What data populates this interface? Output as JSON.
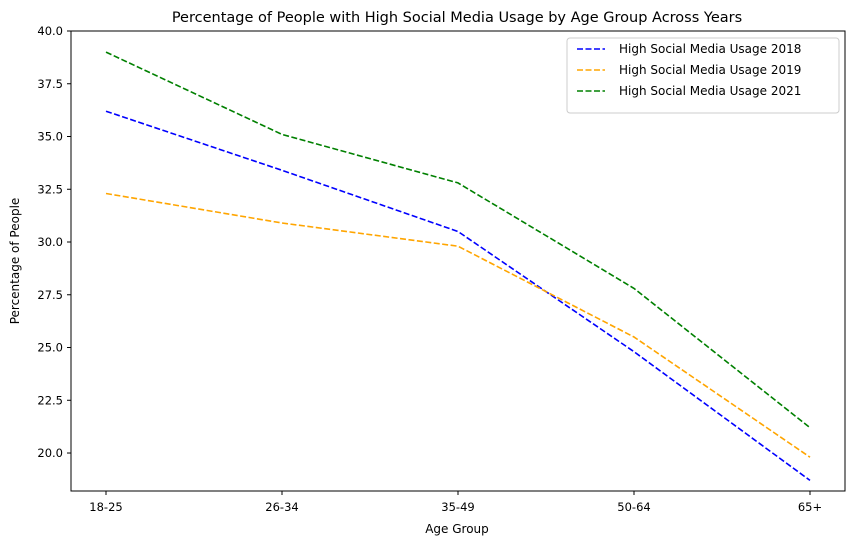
{
  "chart_data": {
    "type": "line",
    "title": "Percentage of People with High Social Media Usage by Age Group Across Years",
    "xlabel": "Age Group",
    "ylabel": "Percentage of People",
    "categories": [
      "18-25",
      "26-34",
      "35-49",
      "50-64",
      "65+"
    ],
    "ylim": [
      18.2,
      40.0
    ],
    "yticks": [
      "20.0",
      "22.5",
      "25.0",
      "27.5",
      "30.0",
      "32.5",
      "35.0",
      "37.5",
      "40.0"
    ],
    "grid": false,
    "legend_position": "top-right",
    "line_style": "dashed",
    "series": [
      {
        "name": "High Social Media Usage 2018",
        "color": "#0000ff",
        "values": [
          36.2,
          33.4,
          30.5,
          24.8,
          18.7
        ]
      },
      {
        "name": "High Social Media Usage 2019",
        "color": "#ffa500",
        "values": [
          32.3,
          30.9,
          29.8,
          25.5,
          19.8
        ]
      },
      {
        "name": "High Social Media Usage 2021",
        "color": "#008000",
        "values": [
          39.0,
          35.1,
          32.8,
          27.8,
          21.2
        ]
      }
    ]
  }
}
